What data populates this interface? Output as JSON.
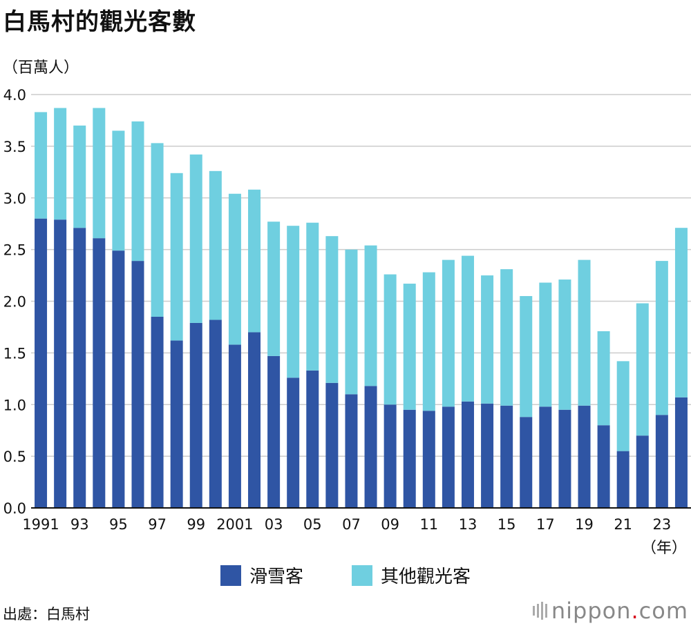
{
  "title": "白馬村的觀光客數",
  "unit_label": "（百萬人）",
  "x_unit_label": "（年）",
  "source": "出處：白馬村",
  "brand": {
    "prefix": "nippon",
    "dot": ".",
    "suffix": "com"
  },
  "colors": {
    "ski": "#2f55a4",
    "other": "#6fcfe0",
    "grid": "#cccccc",
    "axis": "#111111"
  },
  "chart_data": {
    "type": "bar",
    "stacked": true,
    "categories": [
      "1991",
      "1992",
      "1993",
      "1994",
      "1995",
      "1996",
      "1997",
      "1998",
      "1999",
      "2000",
      "2001",
      "2002",
      "2003",
      "2004",
      "2005",
      "2006",
      "2007",
      "2008",
      "2009",
      "2010",
      "2011",
      "2012",
      "2013",
      "2014",
      "2015",
      "2016",
      "2017",
      "2018",
      "2019",
      "2020",
      "2021",
      "2022",
      "2023",
      "2024"
    ],
    "tick_labels": [
      "1991",
      "",
      "93",
      "",
      "95",
      "",
      "97",
      "",
      "99",
      "",
      "2001",
      "",
      "03",
      "",
      "05",
      "",
      "07",
      "",
      "09",
      "",
      "11",
      "",
      "13",
      "",
      "15",
      "",
      "17",
      "",
      "19",
      "",
      "21",
      "",
      "23",
      ""
    ],
    "series": [
      {
        "name": "滑雪客",
        "values": [
          2.8,
          2.79,
          2.71,
          2.61,
          2.49,
          2.39,
          1.85,
          1.62,
          1.79,
          1.82,
          1.58,
          1.7,
          1.47,
          1.26,
          1.33,
          1.21,
          1.1,
          1.18,
          1.0,
          0.95,
          0.94,
          0.98,
          1.03,
          1.01,
          0.99,
          0.88,
          0.98,
          0.95,
          0.99,
          0.8,
          0.55,
          0.7,
          0.9,
          1.07
        ]
      },
      {
        "name": "其他觀光客",
        "values": [
          1.03,
          1.08,
          0.99,
          1.26,
          1.16,
          1.35,
          1.68,
          1.62,
          1.63,
          1.44,
          1.46,
          1.38,
          1.3,
          1.47,
          1.43,
          1.42,
          1.4,
          1.36,
          1.26,
          1.22,
          1.34,
          1.42,
          1.41,
          1.24,
          1.32,
          1.17,
          1.2,
          1.26,
          1.41,
          0.91,
          0.87,
          1.28,
          1.49,
          1.64
        ]
      }
    ],
    "ylim": [
      0,
      4.0
    ],
    "yticks": [
      "0.0",
      "0.5",
      "1.0",
      "1.5",
      "2.0",
      "2.5",
      "3.0",
      "3.5",
      "4.0"
    ],
    "ytick_values": [
      0,
      0.5,
      1.0,
      1.5,
      2.0,
      2.5,
      3.0,
      3.5,
      4.0
    ],
    "grid": true,
    "legend": "bottom-center"
  }
}
